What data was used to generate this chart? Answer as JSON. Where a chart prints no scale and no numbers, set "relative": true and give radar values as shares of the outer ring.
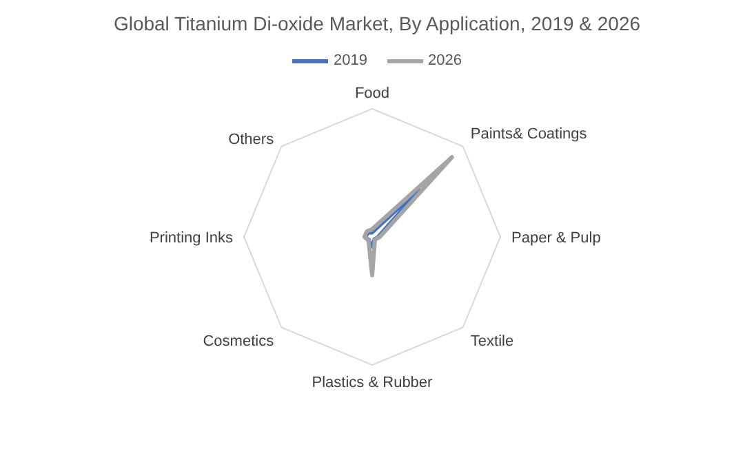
{
  "chart_data": {
    "type": "radar",
    "title": "Global Titanium Di-oxide Market, By Application, 2019 & 2026",
    "categories": [
      "Food",
      "Paints& Coatings",
      "Paper & Pulp",
      "Textile",
      "Plastics & Rubber",
      "Cosmetics",
      "Printing Inks",
      "Others"
    ],
    "relative": true,
    "legend": "top",
    "grid": true,
    "marker": "none",
    "series": [
      {
        "name": "2019",
        "color": "#4472c4",
        "values": [
          0.03,
          0.52,
          0.04,
          0.02,
          0.08,
          0.03,
          0.05,
          0.04
        ]
      },
      {
        "name": "2026",
        "color": "#a5a5a5",
        "values": [
          0.06,
          0.88,
          0.06,
          0.03,
          0.3,
          0.04,
          0.06,
          0.06
        ]
      }
    ]
  }
}
